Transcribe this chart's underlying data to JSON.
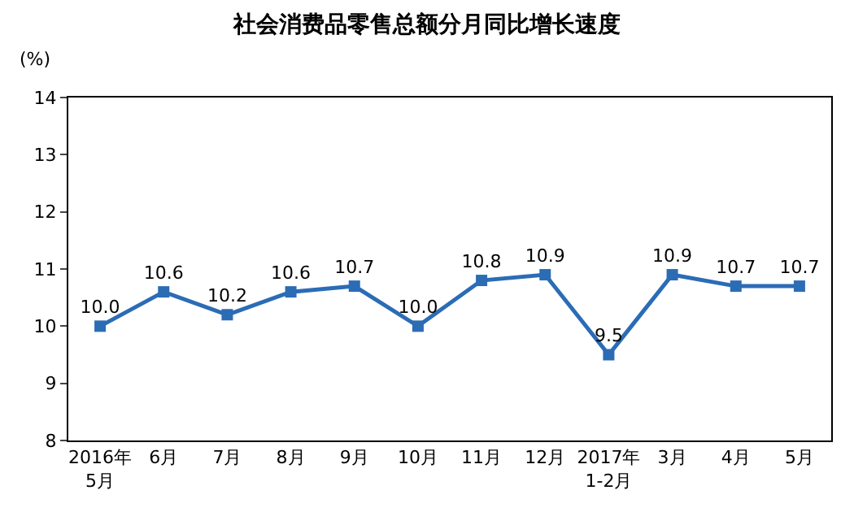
{
  "chart_data": {
    "type": "line",
    "title": "社会消费品零售总额分月同比增长速度",
    "ylabel": "(%)",
    "categories": [
      "2016年\n5月",
      "6月",
      "7月",
      "8月",
      "9月",
      "10月",
      "11月",
      "12月",
      "2017年\n1-2月",
      "3月",
      "4月",
      "5月"
    ],
    "series": [
      {
        "color": "#2b6cb5",
        "values": [
          10.0,
          10.6,
          10.2,
          10.6,
          10.7,
          10.0,
          10.8,
          10.9,
          9.5,
          10.9,
          10.7,
          10.7
        ],
        "value_labels": [
          "10.0",
          "10.6",
          "10.2",
          "10.6",
          "10.7",
          "10.0",
          "10.8",
          "10.9",
          "9.5",
          "10.9",
          "10.7",
          "10.7"
        ]
      }
    ],
    "ylim": [
      8,
      14
    ],
    "yticks": [
      8,
      9,
      10,
      11,
      12,
      13,
      14
    ],
    "marker": "square",
    "line_style": "solid"
  }
}
